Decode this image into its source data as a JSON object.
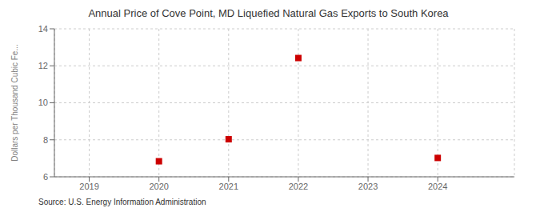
{
  "chart_data": {
    "type": "scatter",
    "title": "Annual Price of Cove Point, MD Liquefied Natural Gas Exports to South Korea",
    "ylabel": "Dollars per Thousand Cubic Fe...",
    "annotations": [
      "Source: U.S. Energy Information Administration"
    ],
    "x": [
      2020,
      2021,
      2022,
      2024
    ],
    "values": [
      6.84,
      8.03,
      12.42,
      7.02
    ],
    "xlim": [
      2018.5,
      2025.1
    ],
    "ylim": [
      6,
      14
    ],
    "xticks": [
      2019,
      2020,
      2021,
      2022,
      2023,
      2024
    ],
    "yticks": [
      6,
      8,
      10,
      12,
      14
    ],
    "color": "#cc0000",
    "marker": "square",
    "grid": true
  }
}
